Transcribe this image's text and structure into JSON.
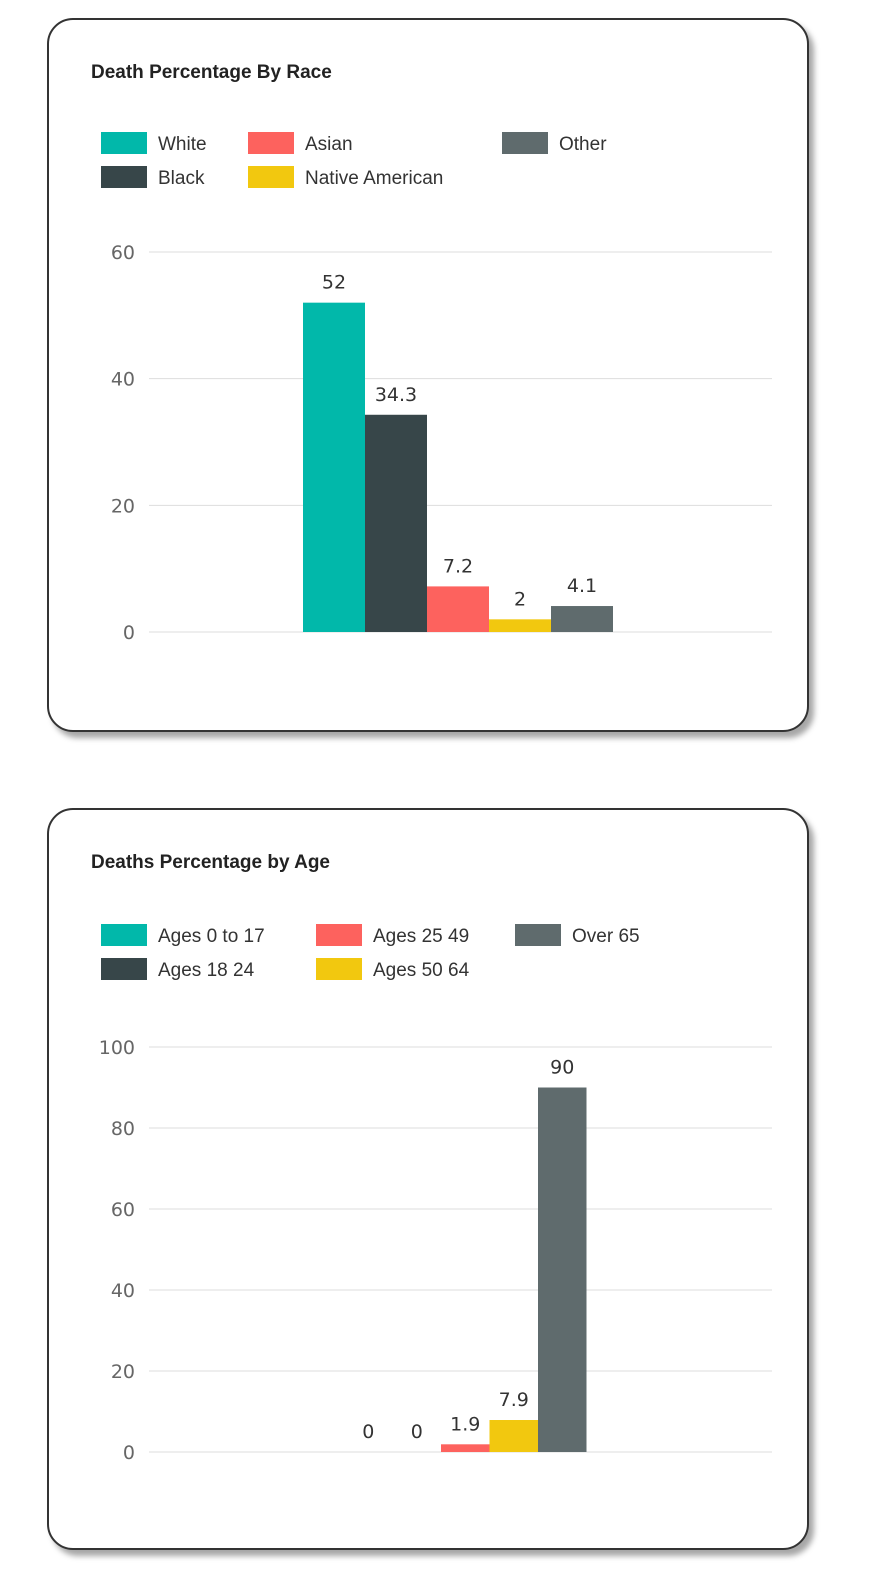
{
  "chart_data": [
    {
      "type": "bar",
      "title": "Death Percentage By Race",
      "categories": [
        "White",
        "Black",
        "Asian",
        "Native American",
        "Other"
      ],
      "values": [
        52,
        34.3,
        7.2,
        2,
        4.1
      ],
      "colors": [
        "#01B8AA",
        "#374649",
        "#FD625E",
        "#F2C80F",
        "#5F6B6D"
      ],
      "legend": [
        "White",
        "Black",
        "Asian",
        "Native American",
        "Other"
      ],
      "yticks": [
        0,
        20,
        40,
        60
      ],
      "ylim": [
        0,
        60
      ],
      "grid": true,
      "legend_position": "top-left",
      "xlabel": "",
      "ylabel": ""
    },
    {
      "type": "bar",
      "title": "Deaths Percentage by Age",
      "categories": [
        "Ages 0 to 17",
        "Ages 18 24",
        "Ages 25 49",
        "Ages 50 64",
        "Over 65"
      ],
      "values": [
        0,
        0,
        1.9,
        7.9,
        90
      ],
      "colors": [
        "#01B8AA",
        "#374649",
        "#FD625E",
        "#F2C80F",
        "#5F6B6D"
      ],
      "legend": [
        "Ages 0 to 17",
        "Ages 18 24",
        "Ages 25 49",
        "Ages 50 64",
        "Over 65"
      ],
      "yticks": [
        0,
        20,
        40,
        60,
        80,
        100
      ],
      "ylim": [
        0,
        100
      ],
      "grid": true,
      "legend_position": "top-left",
      "xlabel": "",
      "ylabel": ""
    }
  ]
}
